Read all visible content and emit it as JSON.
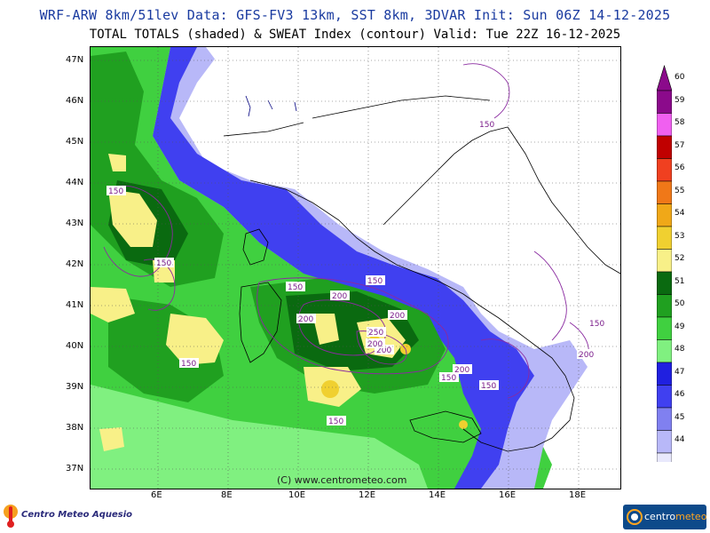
{
  "header": {
    "line1": "WRF-ARW 8km/51lev  Data: GFS-FV3 13km, SST 8km, 3DVAR  Init: Sun 06Z 14-12-2025",
    "line2": "TOTAL TOTALS (shaded) & SWEAT Index (contour)  Valid: Tue 22Z 16-12-2025"
  },
  "axes": {
    "lat_labels": [
      "47N",
      "46N",
      "45N",
      "44N",
      "43N",
      "42N",
      "41N",
      "40N",
      "39N",
      "38N",
      "37N"
    ],
    "lon_labels": [
      "6E",
      "8E",
      "10E",
      "12E",
      "14E",
      "16E",
      "18E"
    ]
  },
  "colorbar": {
    "labels": [
      "60",
      "59",
      "58",
      "57",
      "56",
      "55",
      "54",
      "53",
      "52",
      "51",
      "50",
      "49",
      "48",
      "47",
      "46",
      "45",
      "44"
    ],
    "colors": [
      "#8b0a8b",
      "#f060f0",
      "#c00000",
      "#f04020",
      "#f07818",
      "#f0a818",
      "#f0d030",
      "#f8f088",
      "#0a6a10",
      "#20a020",
      "#40d040",
      "#80f080",
      "#2020e0",
      "#4040f0",
      "#8080f0",
      "#b8b8f8",
      "#e8e8fc"
    ]
  },
  "contour_labels": [
    "150",
    "150",
    "150",
    "150",
    "200",
    "150",
    "200",
    "200",
    "250",
    "200",
    "200",
    "200",
    "150",
    "150",
    "150",
    "200",
    "150",
    "150"
  ],
  "watermark": "(C) www.centrometeo.com",
  "logos": {
    "left": "Centro Meteo Aquesio",
    "right_part1": "centro",
    "right_part2": "meteo"
  }
}
